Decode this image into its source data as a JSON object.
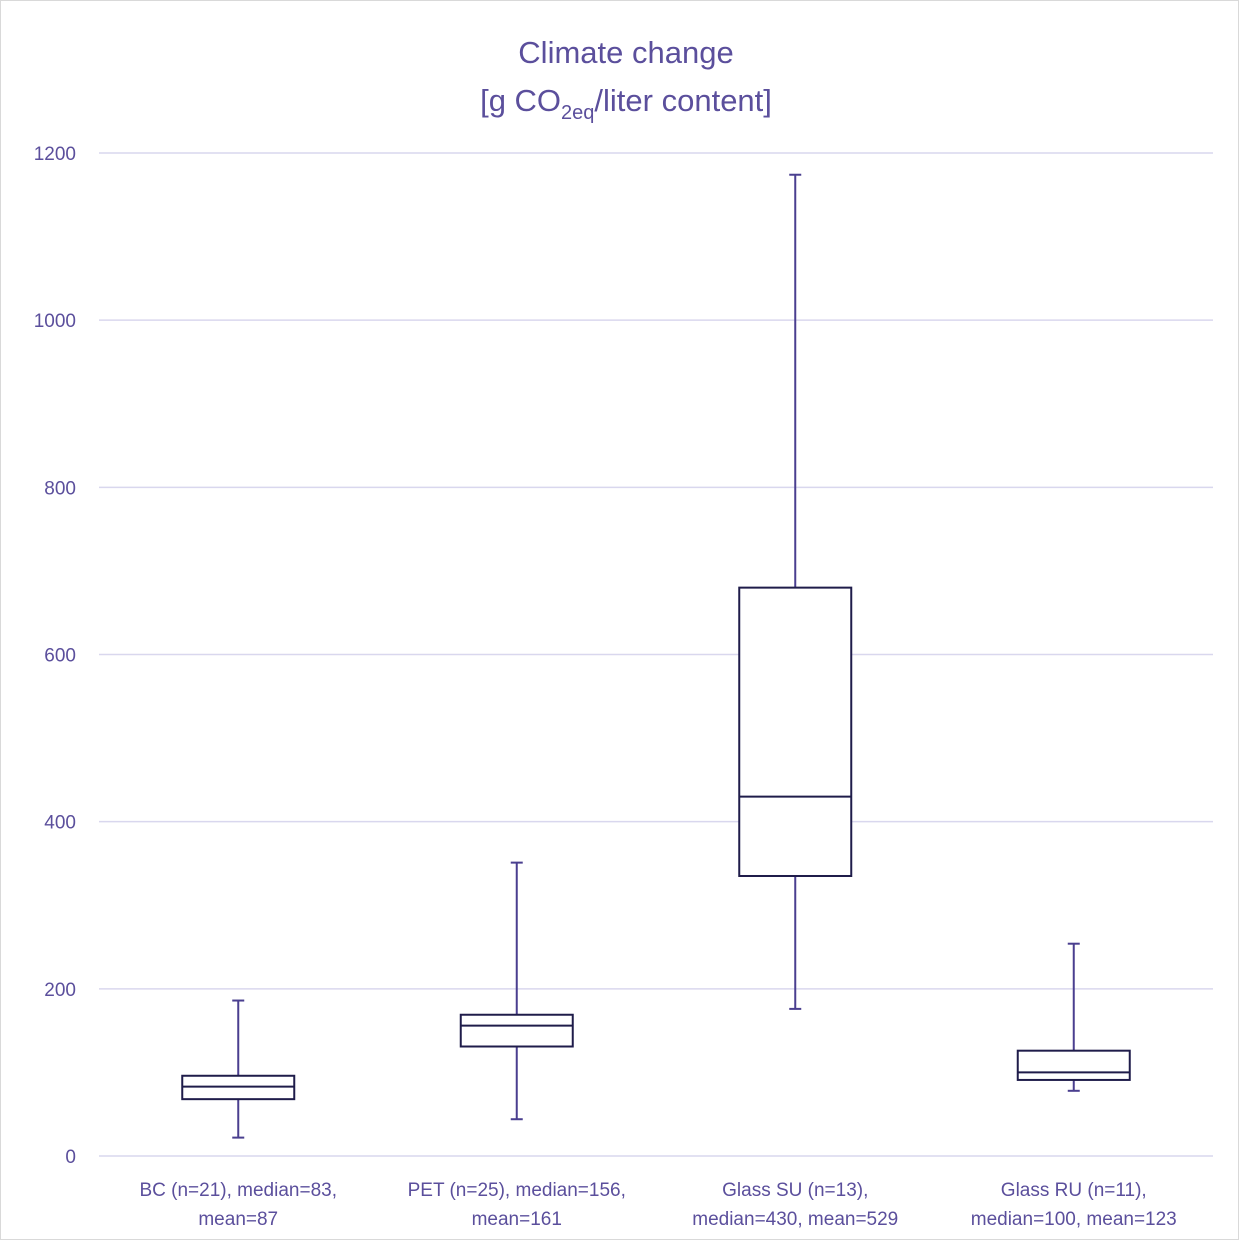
{
  "chart_data": {
    "type": "box",
    "title_line1": "Climate change",
    "title_line2": {
      "prefix": "[g CO",
      "subscript": "2eq",
      "suffix": "/liter content]"
    },
    "ylim": [
      0,
      1200
    ],
    "y_ticks": [
      0,
      200,
      400,
      600,
      800,
      1000,
      1200
    ],
    "grid": true,
    "colors": {
      "box": "#1f1c4a",
      "whisker": "#4a3f8f",
      "grid": "#d9d7ee",
      "text": "#5b4f9c"
    },
    "categories": [
      {
        "label_line1": "BC (n=21), median=83,",
        "label_line2": "mean=87",
        "min": 22,
        "q1": 68,
        "median": 83,
        "q3": 96,
        "max": 186
      },
      {
        "label_line1": "PET (n=25), median=156,",
        "label_line2": "mean=161",
        "min": 44,
        "q1": 131,
        "median": 156,
        "q3": 169,
        "max": 351
      },
      {
        "label_line1": "Glass SU (n=13),",
        "label_line2": "median=430, mean=529",
        "min": 176,
        "q1": 335,
        "median": 430,
        "q3": 680,
        "max": 1174
      },
      {
        "label_line1": "Glass RU (n=11),",
        "label_line2": "median=100, mean=123",
        "min": 78,
        "q1": 91,
        "median": 100,
        "q3": 126,
        "max": 254
      }
    ]
  }
}
